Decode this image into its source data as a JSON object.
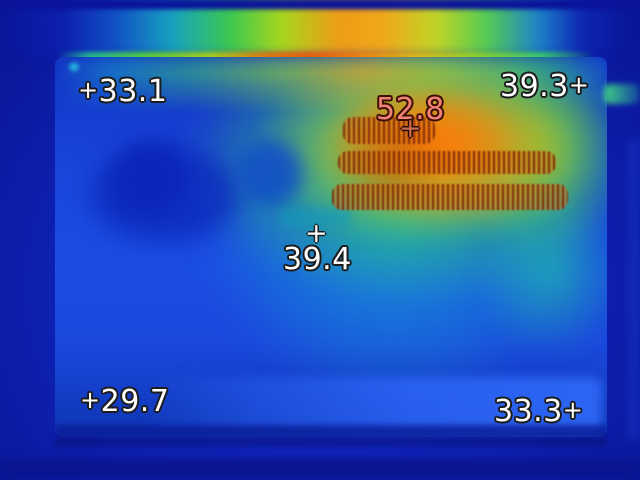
{
  "image": {
    "kind": "infrared-thermal-photo",
    "description": "Thermal camera view of a laptop bottom panel with hot cooling vents",
    "temperature_spots": [
      {
        "id": "top-left",
        "marker": "+",
        "marker_side": "left",
        "value": "33.1",
        "color": "#ffffff"
      },
      {
        "id": "top-right",
        "marker": "+",
        "marker_side": "right",
        "value": "39.3",
        "color": "#ffffff"
      },
      {
        "id": "hotspot",
        "marker": "+",
        "marker_side": "below",
        "value": "52.8",
        "color": "#ee8274"
      },
      {
        "id": "center",
        "marker": "+",
        "marker_side": "above",
        "value": "39.4",
        "color": "#ffffff"
      },
      {
        "id": "bottom-left",
        "marker": "+",
        "marker_side": "left",
        "value": "29.7",
        "color": "#ffffff"
      },
      {
        "id": "bottom-right",
        "marker": "+",
        "marker_side": "right",
        "value": "33.3",
        "color": "#ffffff"
      }
    ],
    "palette": {
      "coldest": "#091599",
      "cold": "#1a46dc",
      "cool": "#17aad4",
      "mild": "#38c558",
      "warm": "#ccd81e",
      "hot": "#f2830e",
      "vent_slats": "#7a2406"
    }
  }
}
